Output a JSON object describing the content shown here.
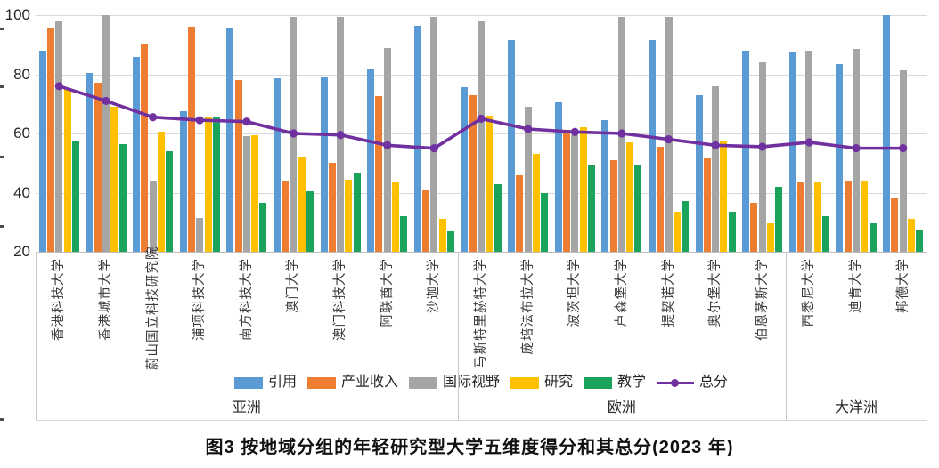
{
  "chart_data": {
    "type": "bar",
    "title": "图3  按地域分组的年轻研究型大学五维度得分和其总分(2023 年)",
    "xlabel": "",
    "ylabel": "",
    "ylim": [
      20,
      104
    ],
    "yticks": [
      20,
      40,
      60,
      80,
      100
    ],
    "grid": true,
    "grid_color": "#d9d9d9",
    "axis_color": "#bfbfbf",
    "legend_position": "bottom",
    "regions": [
      {
        "label": "亚洲",
        "count": 9
      },
      {
        "label": "欧洲",
        "count": 7
      },
      {
        "label": "大洋洲",
        "count": 3
      }
    ],
    "categories": [
      "香港科技大学",
      "香港城市大学",
      "蔚山国立科技研究院",
      "浦项科技大学",
      "南方科技大学",
      "澳门大学",
      "澳门科技大学",
      "阿联酋大学",
      "沙迦大学",
      "马斯特里赫特大学",
      "庞培法布拉大学",
      "波茨坦大学",
      "卢森堡大学",
      "提契诺大学",
      "奥尔堡大学",
      "伯恩茅斯大学",
      "西悉尼大学",
      "迪肯大学",
      "邦德大学"
    ],
    "series": [
      {
        "key": "citations",
        "name": "引用",
        "type": "bar",
        "color": "#5b9bd5",
        "values": [
          88,
          80.5,
          86,
          67.5,
          95.5,
          78.5,
          79,
          82,
          96.5,
          75.5,
          91.5,
          70.5,
          64.5,
          91.5,
          73,
          88,
          87.5,
          83.5,
          100
        ]
      },
      {
        "key": "industry-income",
        "name": "产业收入",
        "type": "bar",
        "color": "#ed7d31",
        "values": [
          95.5,
          77,
          90.5,
          96,
          78,
          44,
          50,
          72.5,
          41,
          73,
          46,
          60,
          51,
          55.5,
          51.5,
          36.5,
          43.5,
          44,
          38
        ]
      },
      {
        "key": "international-outlook",
        "name": "国际视野",
        "type": "bar",
        "color": "#a5a5a5",
        "values": [
          98,
          100,
          44,
          31.5,
          59,
          99.5,
          99.5,
          89,
          99.5,
          98,
          69,
          59.5,
          99.5,
          99.5,
          76,
          84,
          88,
          88.5,
          81.5
        ]
      },
      {
        "key": "research",
        "name": "研究",
        "type": "bar",
        "color": "#ffc000",
        "values": [
          75,
          69,
          60.5,
          65.5,
          59.5,
          52,
          44.5,
          43.5,
          31,
          66,
          53,
          62,
          57,
          33.5,
          57.5,
          29.5,
          43.5,
          44,
          31
        ]
      },
      {
        "key": "teaching",
        "name": "教学",
        "type": "bar",
        "color": "#1ca35b",
        "values": [
          57.5,
          56.5,
          54,
          65.5,
          36.5,
          40.5,
          46.5,
          32,
          27,
          43,
          40,
          49.5,
          49.5,
          37,
          33.5,
          42,
          32,
          29.5,
          27.5
        ]
      },
      {
        "key": "total",
        "name": "总分",
        "type": "line",
        "color": "#7030a0",
        "values": [
          76,
          71,
          65.5,
          64.5,
          64,
          60,
          59.5,
          56,
          55,
          65,
          61.5,
          60.5,
          60,
          58,
          56,
          55.5,
          57,
          55,
          55
        ]
      }
    ]
  }
}
